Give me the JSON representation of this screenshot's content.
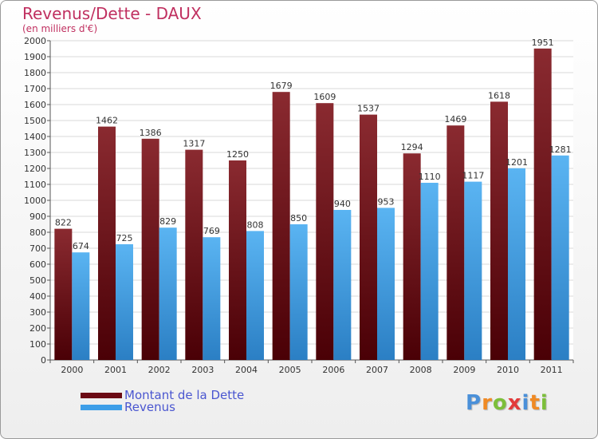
{
  "title": "Revenus/Dette - DAUX",
  "subtitle": "(en milliers d'€)",
  "legend": [
    {
      "label": "Montant de la Dette",
      "color": "#6b0a14"
    },
    {
      "label": "Revenus",
      "color": "#3d9ee8"
    }
  ],
  "logo": {
    "text": "Proxiti",
    "letters": [
      "P",
      "r",
      "o",
      "x",
      "i",
      "t",
      "i"
    ],
    "colors": [
      "#4a90d9",
      "#f08a24",
      "#7cbf3a",
      "#e23a3a",
      "#4a90d9",
      "#f08a24",
      "#7cbf3a"
    ]
  },
  "chart_data": {
    "type": "bar",
    "title": "Revenus/Dette - DAUX",
    "ylabel": "(en milliers d'€)",
    "categories": [
      "2000",
      "2001",
      "2002",
      "2003",
      "2004",
      "2005",
      "2006",
      "2007",
      "2008",
      "2009",
      "2010",
      "2011"
    ],
    "series": [
      {
        "name": "Montant de la Dette",
        "color": "#6b0a14",
        "values": [
          822,
          1462,
          1386,
          1317,
          1250,
          1679,
          1609,
          1537,
          1294,
          1469,
          1618,
          1951
        ]
      },
      {
        "name": "Revenus",
        "color": "#3d9ee8",
        "values": [
          674,
          725,
          829,
          769,
          808,
          850,
          940,
          953,
          1110,
          1117,
          1201,
          1281
        ]
      }
    ],
    "ylim": [
      0,
      2000
    ],
    "ytick_step": 100,
    "grid": true,
    "legend_position": "bottom-left"
  }
}
